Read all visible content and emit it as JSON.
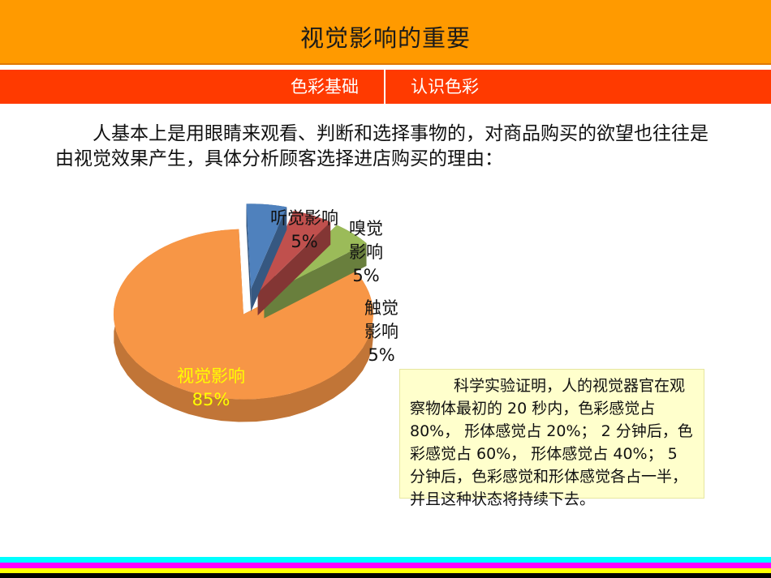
{
  "header": {
    "title": "视觉影响的重要",
    "tab_left": "色彩基础",
    "tab_right": "认识色彩"
  },
  "intro_text": "人基本上是用眼睛来观看、判断和选择事物的，对商品购买的欲望也往往是由视觉效果产生，具体分析顾客选择进店购买的理由：",
  "chart_data": {
    "type": "pie",
    "title": "",
    "slices": [
      {
        "label": "听觉影响",
        "value": 5,
        "display": "5%",
        "color": "#4f81bd"
      },
      {
        "label": "嗅觉影响",
        "value": 5,
        "display": "5%",
        "color": "#c0504d"
      },
      {
        "label": "触觉影响",
        "value": 5,
        "display": "5%",
        "color": "#9bbb59"
      },
      {
        "label": "视觉影响",
        "value": 85,
        "display": "85%",
        "color": "#f79646"
      }
    ],
    "labels": {
      "ting": {
        "line1": "听觉影响",
        "line2": "5%"
      },
      "xiu": {
        "line1": "嗅觉",
        "line2": "影响",
        "line3": "5%"
      },
      "chu": {
        "line1": "触觉",
        "line2": "影响",
        "line3": "5%"
      },
      "shi": {
        "line1": "视觉影响",
        "line2": "85%"
      }
    },
    "style": "3d-exploded",
    "legend": "none"
  },
  "note_text": "科学实验证明，人的视觉器官在观察物体最初的 20 秒内，色彩感觉占 80%， 形体感觉占 20%； 2 分钟后，色彩感觉占 60%， 形体感觉占 40%； 5 分钟后，色彩感觉和形体感觉各占一半，并且这种状态将持续下去。",
  "colors": {
    "title_bar": "#ff9a00",
    "sub_bar": "#ff3a00",
    "note_bg": "#ffffcc",
    "stripes": [
      "#00ffff",
      "#ff00ff",
      "#ffff00",
      "#000000"
    ]
  }
}
